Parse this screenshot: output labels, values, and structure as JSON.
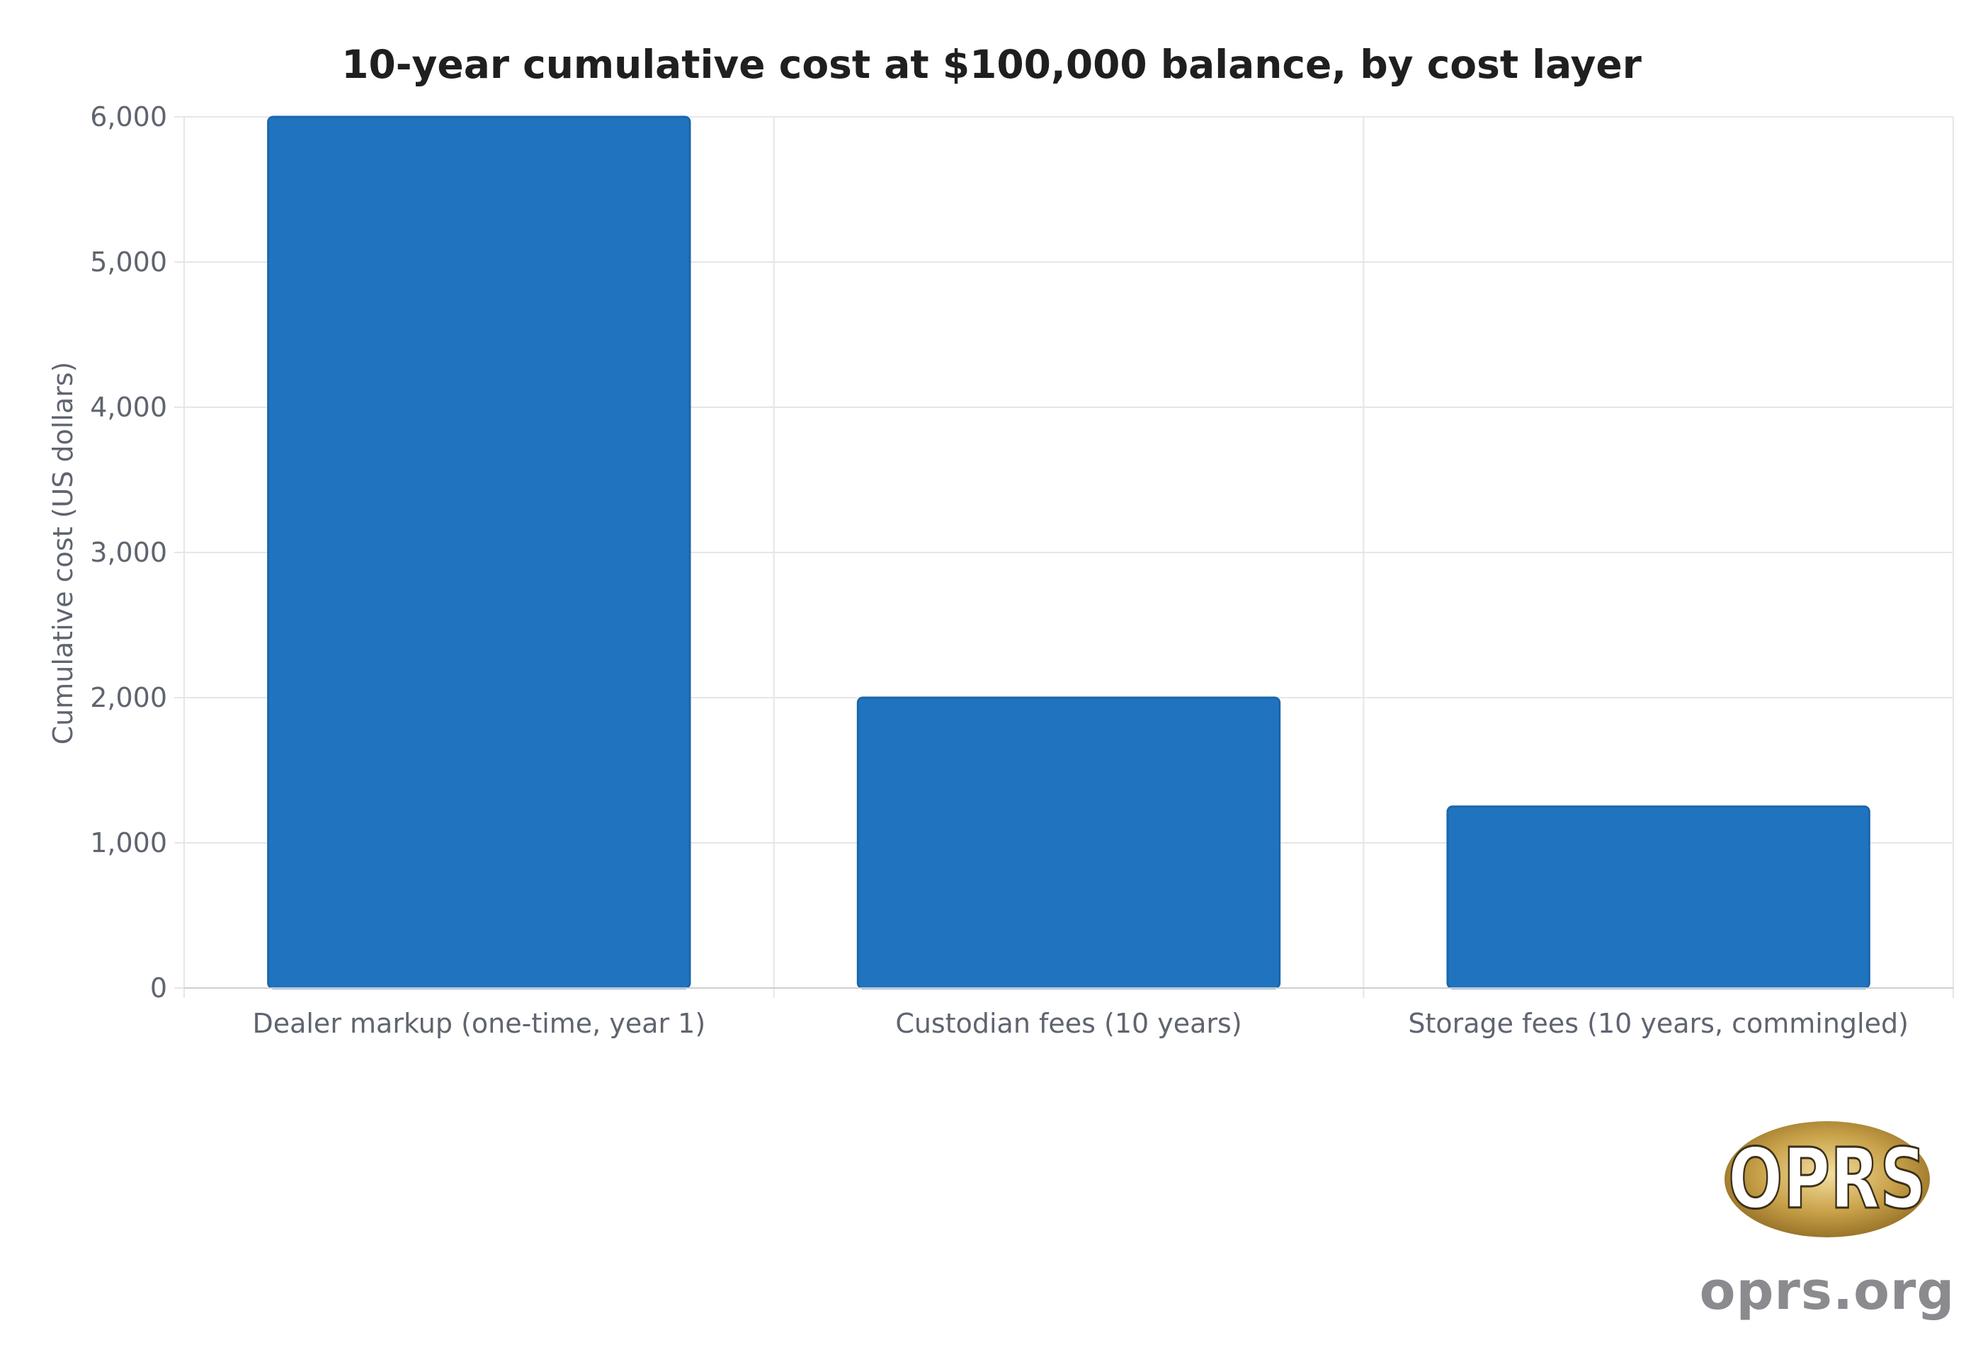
{
  "chart_data": {
    "type": "bar",
    "title": "10-year cumulative cost at $100,000 balance, by cost layer",
    "xlabel": "",
    "ylabel": "Cumulative cost (US dollars)",
    "categories": [
      "Dealer markup (one-time, year 1)",
      "Custodian fees (10 years)",
      "Storage fees (10 years, commingled)"
    ],
    "values": [
      6000,
      2000,
      1250
    ],
    "ylim": [
      0,
      6000
    ],
    "yticks": [
      0,
      1000,
      2000,
      3000,
      4000,
      5000,
      6000
    ],
    "ytick_labels": [
      "0",
      "1,000",
      "2,000",
      "3,000",
      "4,000",
      "5,000",
      "6,000"
    ],
    "grid": true,
    "bar_color": "#2074bf"
  },
  "watermark": {
    "logo_text": "OPRS",
    "site": "oprs.org"
  }
}
